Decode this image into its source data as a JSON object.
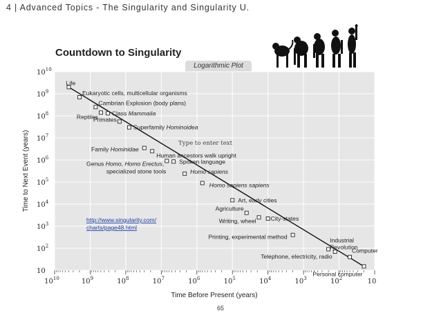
{
  "header": {
    "text": "4 | Advanced Topics - The Singularity and Singularity U."
  },
  "page_number": "65",
  "chart_data": {
    "type": "scatter",
    "title": "Countdown to Singularity",
    "subtitle": "Logarithmic Plot",
    "xlabel": "Time Before Present (years)",
    "ylabel": "Time to Next Event (years)",
    "x_scale": "log",
    "y_scale": "log",
    "x_reversed": true,
    "xlim": [
      10000000000,
      10
    ],
    "ylim": [
      10,
      10000000000
    ],
    "grid": true,
    "x_ticks": [
      {
        "base": "10",
        "exp": "10"
      },
      {
        "base": "10",
        "exp": "9"
      },
      {
        "base": "10",
        "exp": "8"
      },
      {
        "base": "10",
        "exp": "7"
      },
      {
        "base": "10",
        "exp": "6"
      },
      {
        "base": "10",
        "exp": "5"
      },
      {
        "base": "10",
        "exp": "4"
      },
      {
        "base": "10",
        "exp": "3"
      },
      {
        "base": "10",
        "exp": "2"
      },
      {
        "base": "10",
        "exp": ""
      }
    ],
    "y_ticks": [
      {
        "base": "10",
        "exp": "10"
      },
      {
        "base": "10",
        "exp": "9"
      },
      {
        "base": "10",
        "exp": "8"
      },
      {
        "base": "10",
        "exp": "7"
      },
      {
        "base": "10",
        "exp": "6"
      },
      {
        "base": "10",
        "exp": "5"
      },
      {
        "base": "10",
        "exp": "4"
      },
      {
        "base": "10",
        "exp": "3"
      },
      {
        "base": "10",
        "exp": "2"
      },
      {
        "base": "10",
        "exp": ""
      }
    ],
    "points": [
      {
        "x": 4000000000,
        "y": 2000000000
      },
      {
        "x": 2000000000,
        "y": 700000000
      },
      {
        "x": 700000000,
        "y": 250000000
      },
      {
        "x": 500000000,
        "y": 140000000
      },
      {
        "x": 320000000,
        "y": 130000000
      },
      {
        "x": 150000000,
        "y": 55000000
      },
      {
        "x": 80000000,
        "y": 30000000
      },
      {
        "x": 30000000,
        "y": 3500000
      },
      {
        "x": 18000000,
        "y": 2500000
      },
      {
        "x": 7000000,
        "y": 900000
      },
      {
        "x": 4500000,
        "y": 850000
      },
      {
        "x": 2200000,
        "y": 240000
      },
      {
        "x": 700000,
        "y": 90000
      },
      {
        "x": 100000,
        "y": 15000
      },
      {
        "x": 40000,
        "y": 4000
      },
      {
        "x": 18000,
        "y": 2500
      },
      {
        "x": 10000,
        "y": 2200
      },
      {
        "x": 2000,
        "y": 400
      },
      {
        "x": 200,
        "y": 90
      },
      {
        "x": 130,
        "y": 70
      },
      {
        "x": 50,
        "y": 40
      },
      {
        "x": 20,
        "y": 15
      }
    ],
    "annotations": [
      {
        "parts": [
          {
            "t": "Life",
            "i": false
          }
        ],
        "x": 4000000000,
        "y": 2000000000
      },
      {
        "parts": [
          {
            "t": "Eukaryotic cells, multicellular organisms",
            "i": false
          }
        ],
        "x": 2000000000,
        "y": 700000000
      },
      {
        "parts": [
          {
            "t": "Cambrian Explosion (body plans)",
            "i": false
          }
        ],
        "x": 700000000,
        "y": 250000000
      },
      {
        "parts": [
          {
            "t": "Reptiles",
            "i": false
          }
        ],
        "x": 500000000,
        "y": 140000000
      },
      {
        "parts": [
          {
            "t": "Class ",
            "i": false
          },
          {
            "t": "Mammalia",
            "i": true
          }
        ],
        "x": 320000000,
        "y": 130000000
      },
      {
        "parts": [
          {
            "t": "Primates",
            "i": false
          }
        ],
        "x": 150000000,
        "y": 55000000
      },
      {
        "parts": [
          {
            "t": "Superfamily ",
            "i": false
          },
          {
            "t": "Hominoidea",
            "i": true
          }
        ],
        "x": 80000000,
        "y": 30000000
      },
      {
        "parts": [
          {
            "t": "Family ",
            "i": false
          },
          {
            "t": "Hominidae",
            "i": true
          }
        ],
        "x": 30000000,
        "y": 3500000
      },
      {
        "parts": [
          {
            "t": "Human ancestors walk upright",
            "i": false
          }
        ],
        "x": 18000000,
        "y": 2500000
      },
      {
        "parts": [
          {
            "t": "Genus ",
            "i": false
          },
          {
            "t": "Homo",
            "i": true
          },
          {
            "t": ", ",
            "i": false
          },
          {
            "t": "Homo Erectus",
            "i": true
          },
          {
            "t": ",",
            "i": false
          }
        ],
        "x": 7000000,
        "y": 900000
      },
      {
        "parts": [
          {
            "t": "specialized stone tools",
            "i": false
          }
        ],
        "x": 7000000,
        "y": 900000
      },
      {
        "parts": [
          {
            "t": "Spoken language",
            "i": false
          }
        ],
        "x": 4500000,
        "y": 850000
      },
      {
        "parts": [
          {
            "t": "Homo sapiens",
            "i": true
          }
        ],
        "x": 2200000,
        "y": 240000
      },
      {
        "parts": [
          {
            "t": "Homo sapiens sapiens",
            "i": true
          }
        ],
        "x": 700000,
        "y": 90000
      },
      {
        "parts": [
          {
            "t": "Art, early cities",
            "i": false
          }
        ],
        "x": 100000,
        "y": 15000
      },
      {
        "parts": [
          {
            "t": "Agriculture",
            "i": false
          }
        ],
        "x": 40000,
        "y": 4000
      },
      {
        "parts": [
          {
            "t": "Writing, wheel",
            "i": false
          }
        ],
        "x": 18000,
        "y": 2500
      },
      {
        "parts": [
          {
            "t": "City-states",
            "i": false
          }
        ],
        "x": 10000,
        "y": 2200
      },
      {
        "parts": [
          {
            "t": "Printing, experimental method",
            "i": false
          }
        ],
        "x": 2000,
        "y": 400
      },
      {
        "parts": [
          {
            "t": "Industrial",
            "i": false
          }
        ],
        "x": 200,
        "y": 90
      },
      {
        "parts": [
          {
            "t": "Revolution",
            "i": false
          }
        ],
        "x": 200,
        "y": 90
      },
      {
        "parts": [
          {
            "t": "Telephone, electricity, radio",
            "i": false
          }
        ],
        "x": 130,
        "y": 70
      },
      {
        "parts": [
          {
            "t": "Computer",
            "i": false
          }
        ],
        "x": 50,
        "y": 40
      },
      {
        "parts": [
          {
            "t": "Personal computer",
            "i": false
          }
        ],
        "x": 20,
        "y": 15
      }
    ],
    "placeholder_text": "Type to enter text",
    "link_lines": [
      "http://www.singularity.com/",
      "charts/page48.html"
    ]
  }
}
